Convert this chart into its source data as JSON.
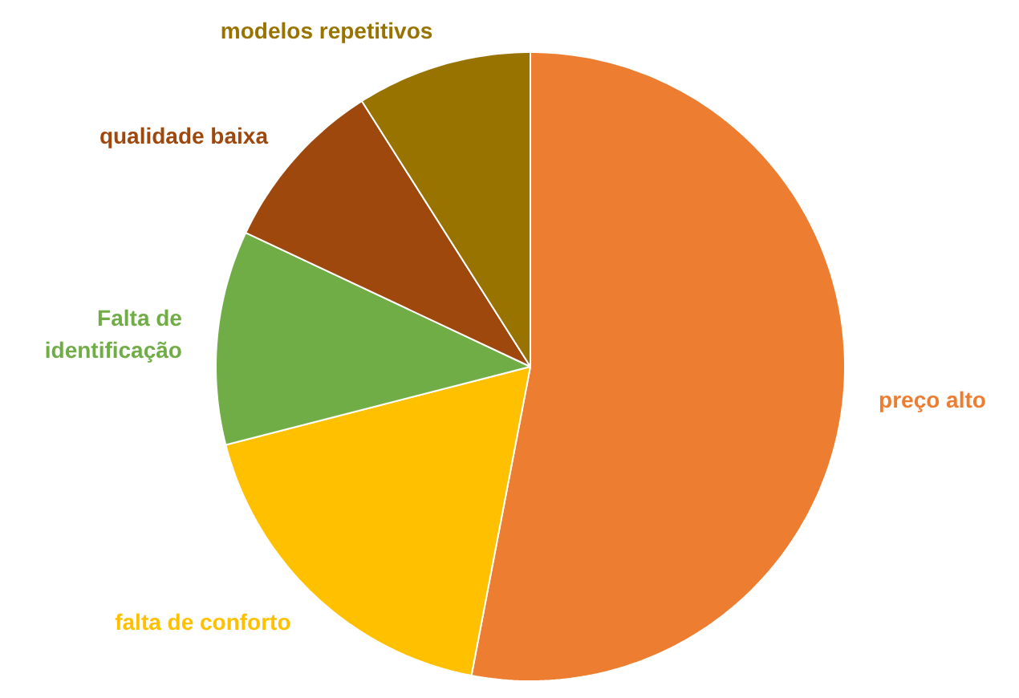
{
  "chart_data": {
    "type": "pie",
    "categories": [
      "preço alto",
      "falta de conforto",
      "Falta de\nidentificação",
      "qualidade baixa",
      "modelos repetitivos"
    ],
    "values": [
      53,
      18,
      11,
      9,
      9
    ],
    "colors": [
      "#ed7d31",
      "#ffc000",
      "#70ad47",
      "#9e480e",
      "#997300"
    ]
  }
}
